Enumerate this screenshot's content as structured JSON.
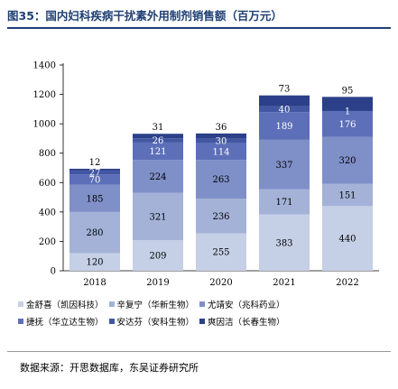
{
  "title": "图35：国内妇科疾病干扰素外用制剂销售额（百万元）",
  "source": "数据来源：开思数据库，东吴证券研究所",
  "chart_data": {
    "type": "bar",
    "stacked": true,
    "categories": [
      "2018",
      "2019",
      "2020",
      "2021",
      "2022"
    ],
    "ylim": [
      0,
      1400
    ],
    "yticks": [
      0,
      200,
      400,
      600,
      800,
      1000,
      1200,
      1400
    ],
    "series": [
      {
        "name": "金舒喜（凯因科技）",
        "color": "#c5cfe6",
        "label_color": "#000000",
        "values": [
          120,
          209,
          255,
          383,
          440
        ]
      },
      {
        "name": "辛复宁（华新生物）",
        "color": "#a4b2d8",
        "label_color": "#000000",
        "values": [
          280,
          321,
          236,
          171,
          151
        ]
      },
      {
        "name": "尤靖安（兆科药业）",
        "color": "#7f8fc8",
        "label_color": "#000000",
        "values": [
          185,
          224,
          263,
          337,
          320
        ]
      },
      {
        "name": "捷抚（华立达生物）",
        "color": "#5d6fb8",
        "label_color": "#ffffff",
        "values": [
          70,
          121,
          114,
          189,
          176
        ]
      },
      {
        "name": "安达芬（安科生物）",
        "color": "#4257a3",
        "label_color": "#ffffff",
        "values": [
          27,
          26,
          30,
          40,
          1
        ]
      },
      {
        "name": "爽因洁（长春生物）",
        "color": "#2b4088",
        "label_color": "#000000",
        "values": [
          12,
          31,
          36,
          73,
          95
        ]
      }
    ]
  }
}
